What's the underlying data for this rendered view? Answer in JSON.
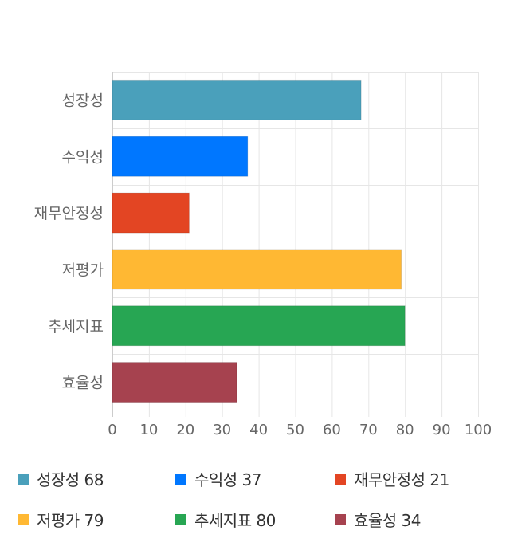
{
  "chart_data": {
    "type": "bar",
    "orientation": "horizontal",
    "categories": [
      "성장성",
      "수익성",
      "재무안정성",
      "저평가",
      "추세지표",
      "효율성"
    ],
    "values": [
      68,
      37,
      21,
      79,
      80,
      34
    ],
    "colors": [
      "#4aa0bb",
      "#0077ff",
      "#e34523",
      "#ffb833",
      "#27a653",
      "#a6424f"
    ],
    "xlim": [
      0,
      100
    ],
    "xticks": [
      "0",
      "10",
      "20",
      "30",
      "40",
      "50",
      "60",
      "70",
      "80",
      "90",
      "100"
    ],
    "grid": true,
    "legend_position": "bottom",
    "legend": [
      "성장성 68",
      "수익성 37",
      "재무안정성 21",
      "저평가 79",
      "추세지표 80",
      "효율성 34"
    ]
  }
}
